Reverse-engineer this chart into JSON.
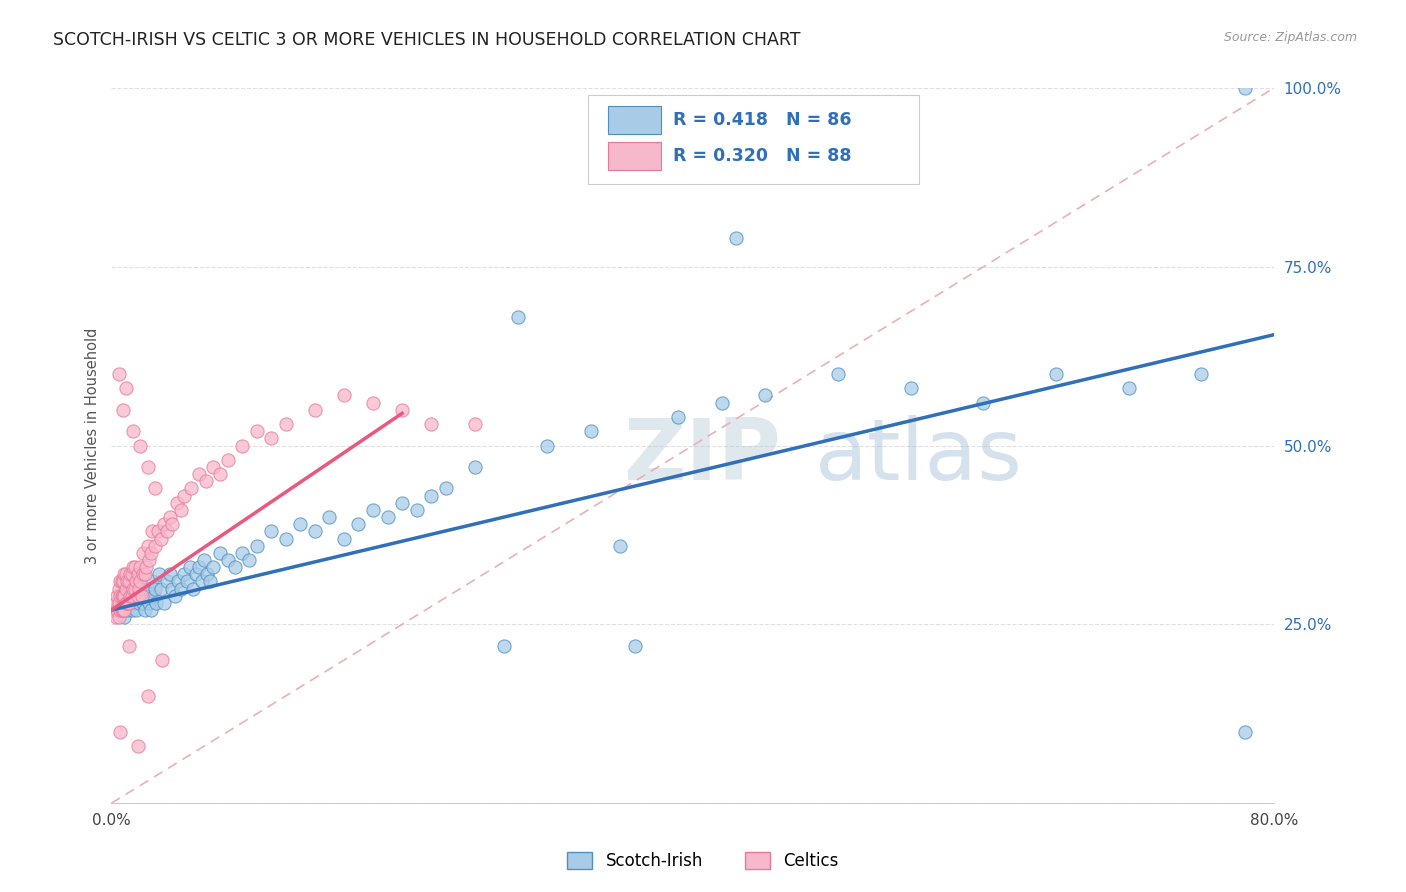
{
  "title": "SCOTCH-IRISH VS CELTIC 3 OR MORE VEHICLES IN HOUSEHOLD CORRELATION CHART",
  "source": "Source: ZipAtlas.com",
  "ylabel": "3 or more Vehicles in Household",
  "legend_r1": "0.418",
  "legend_n1": "86",
  "legend_r2": "0.320",
  "legend_n2": "88",
  "legend_label1": "Scotch-Irish",
  "legend_label2": "Celtics",
  "color_blue_fill": "#a8cce8",
  "color_pink_fill": "#f8b8cc",
  "color_blue_edge": "#5090c0",
  "color_pink_edge": "#e87898",
  "color_blue_line": "#3070b8",
  "color_pink_line": "#e85880",
  "color_diag": "#e8b0b8",
  "watermark_text": "ZIPatlas",
  "watermark_color": "#ccdde8",
  "xlim_min": 0.0,
  "xlim_max": 0.8,
  "ylim_min": 0.0,
  "ylim_max": 1.0,
  "xtick_positions": [
    0.0,
    0.1,
    0.2,
    0.3,
    0.4,
    0.5,
    0.6,
    0.7,
    0.8
  ],
  "xtick_labels": [
    "0.0%",
    "",
    "",
    "",
    "",
    "",
    "",
    "",
    "80.0%"
  ],
  "ytick_positions": [
    0.0,
    0.25,
    0.5,
    0.75,
    1.0
  ],
  "ytick_labels": [
    "",
    "25.0%",
    "50.0%",
    "75.0%",
    "100.0%"
  ],
  "si_line_x0": 0.0,
  "si_line_y0": 0.27,
  "si_line_x1": 0.8,
  "si_line_y1": 0.655,
  "cel_line_x0": 0.0,
  "cel_line_y0": 0.27,
  "cel_line_x1": 0.2,
  "cel_line_y1": 0.545,
  "figwidth": 14.06,
  "figheight": 8.92,
  "dpi": 100,
  "si_x": [
    0.005,
    0.006,
    0.007,
    0.008,
    0.009,
    0.01,
    0.01,
    0.011,
    0.012,
    0.013,
    0.014,
    0.015,
    0.016,
    0.017,
    0.018,
    0.019,
    0.02,
    0.021,
    0.022,
    0.023,
    0.024,
    0.025,
    0.026,
    0.027,
    0.028,
    0.029,
    0.03,
    0.031,
    0.033,
    0.034,
    0.036,
    0.038,
    0.04,
    0.042,
    0.044,
    0.046,
    0.048,
    0.05,
    0.052,
    0.054,
    0.056,
    0.058,
    0.06,
    0.062,
    0.064,
    0.066,
    0.068,
    0.07,
    0.075,
    0.08,
    0.085,
    0.09,
    0.095,
    0.1,
    0.11,
    0.12,
    0.13,
    0.14,
    0.15,
    0.16,
    0.17,
    0.18,
    0.19,
    0.2,
    0.21,
    0.22,
    0.23,
    0.25,
    0.27,
    0.3,
    0.33,
    0.36,
    0.39,
    0.42,
    0.45,
    0.5,
    0.55,
    0.6,
    0.65,
    0.7,
    0.75,
    0.78,
    0.35,
    0.28,
    0.43,
    0.78
  ],
  "si_y": [
    0.27,
    0.28,
    0.27,
    0.28,
    0.26,
    0.28,
    0.3,
    0.27,
    0.29,
    0.28,
    0.27,
    0.29,
    0.28,
    0.27,
    0.3,
    0.28,
    0.29,
    0.3,
    0.28,
    0.27,
    0.29,
    0.3,
    0.28,
    0.27,
    0.31,
    0.29,
    0.3,
    0.28,
    0.32,
    0.3,
    0.28,
    0.31,
    0.32,
    0.3,
    0.29,
    0.31,
    0.3,
    0.32,
    0.31,
    0.33,
    0.3,
    0.32,
    0.33,
    0.31,
    0.34,
    0.32,
    0.31,
    0.33,
    0.35,
    0.34,
    0.33,
    0.35,
    0.34,
    0.36,
    0.38,
    0.37,
    0.39,
    0.38,
    0.4,
    0.37,
    0.39,
    0.41,
    0.4,
    0.42,
    0.41,
    0.43,
    0.44,
    0.47,
    0.22,
    0.5,
    0.52,
    0.22,
    0.54,
    0.56,
    0.57,
    0.6,
    0.58,
    0.56,
    0.6,
    0.58,
    0.6,
    1.0,
    0.36,
    0.68,
    0.79,
    0.1
  ],
  "cel_x": [
    0.002,
    0.003,
    0.003,
    0.004,
    0.004,
    0.005,
    0.005,
    0.005,
    0.006,
    0.006,
    0.006,
    0.007,
    0.007,
    0.007,
    0.008,
    0.008,
    0.008,
    0.009,
    0.009,
    0.009,
    0.01,
    0.01,
    0.01,
    0.011,
    0.011,
    0.012,
    0.012,
    0.013,
    0.013,
    0.014,
    0.014,
    0.015,
    0.015,
    0.016,
    0.016,
    0.017,
    0.018,
    0.018,
    0.019,
    0.02,
    0.02,
    0.021,
    0.022,
    0.022,
    0.023,
    0.024,
    0.025,
    0.026,
    0.027,
    0.028,
    0.03,
    0.032,
    0.034,
    0.036,
    0.038,
    0.04,
    0.042,
    0.045,
    0.048,
    0.05,
    0.055,
    0.06,
    0.065,
    0.07,
    0.075,
    0.08,
    0.09,
    0.1,
    0.11,
    0.12,
    0.14,
    0.16,
    0.18,
    0.2,
    0.22,
    0.25,
    0.005,
    0.008,
    0.01,
    0.015,
    0.02,
    0.025,
    0.03,
    0.006,
    0.012,
    0.018,
    0.025,
    0.035
  ],
  "cel_y": [
    0.27,
    0.26,
    0.28,
    0.27,
    0.29,
    0.26,
    0.28,
    0.3,
    0.27,
    0.29,
    0.31,
    0.27,
    0.29,
    0.31,
    0.27,
    0.29,
    0.31,
    0.27,
    0.29,
    0.32,
    0.28,
    0.3,
    0.32,
    0.28,
    0.31,
    0.28,
    0.31,
    0.29,
    0.32,
    0.29,
    0.32,
    0.3,
    0.33,
    0.3,
    0.33,
    0.31,
    0.29,
    0.32,
    0.3,
    0.33,
    0.31,
    0.29,
    0.32,
    0.35,
    0.32,
    0.33,
    0.36,
    0.34,
    0.35,
    0.38,
    0.36,
    0.38,
    0.37,
    0.39,
    0.38,
    0.4,
    0.39,
    0.42,
    0.41,
    0.43,
    0.44,
    0.46,
    0.45,
    0.47,
    0.46,
    0.48,
    0.5,
    0.52,
    0.51,
    0.53,
    0.55,
    0.57,
    0.56,
    0.55,
    0.53,
    0.53,
    0.6,
    0.55,
    0.58,
    0.52,
    0.5,
    0.47,
    0.44,
    0.1,
    0.22,
    0.08,
    0.15,
    0.2
  ]
}
